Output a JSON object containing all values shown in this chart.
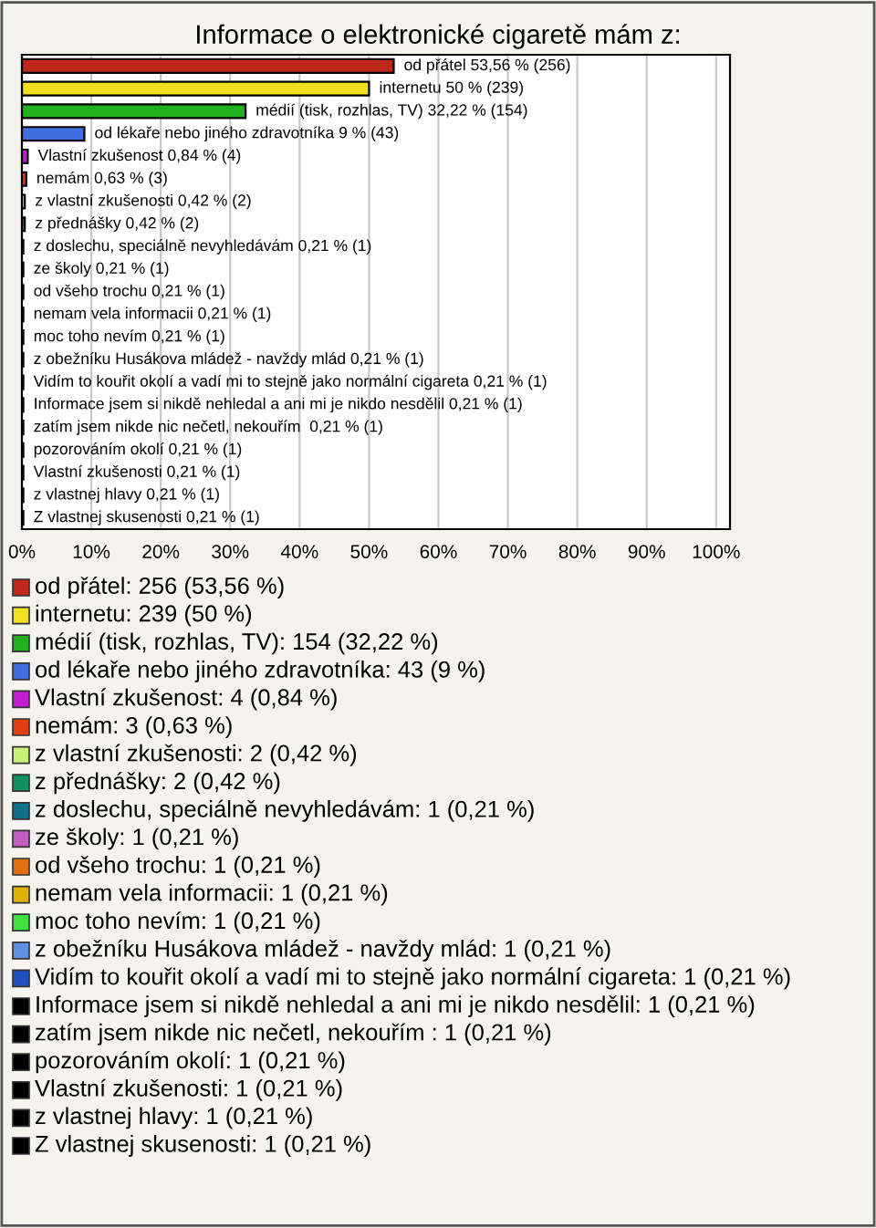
{
  "chart_data": {
    "type": "bar",
    "orientation": "horizontal",
    "title": "Informace o elektronické cigaretě mám z:",
    "categories": [
      null,
      null,
      null,
      null,
      null,
      null,
      null,
      null,
      null,
      null,
      null,
      null,
      null,
      null,
      null,
      null,
      null,
      null,
      null,
      null,
      null
    ],
    "values": [
      53.56,
      50,
      32.22,
      9,
      0.84,
      0.63,
      0.42,
      0.42,
      0.21,
      0.21,
      0.21,
      0.21,
      0.21,
      0.21,
      0.21,
      0.21,
      0.21,
      0.21,
      0.21,
      0.21,
      0.21
    ],
    "colors": [
      "#c0281c",
      "#f0e020",
      "#20b020",
      "#4070e0",
      "#c020d0",
      "#e04010",
      "#c8f078",
      "#109060",
      "#107088",
      "#c060c0",
      "#e07010",
      "#e0b000",
      "#40e040",
      "#6090e0",
      "#2050c0",
      "#000000",
      "#000000",
      "#000000",
      "#000000",
      "#000000",
      "#000000"
    ],
    "value_labels": [
      "od přátel 53,56 % (256)",
      "internetu 50 % (239)",
      "médií (tisk, rozhlas, TV) 32,22 % (154)",
      "od lékaře nebo jiného zdravotníka 9 % (43)",
      "Vlastní zkušenost 0,84 % (4)",
      "nemám 0,63 % (3)",
      "z vlastní zkušenosti 0,42 % (2)",
      "z přednášky 0,42 % (2)",
      "z doslechu, speciálně nevyhledávám 0,21 % (1)",
      "ze školy 0,21 % (1)",
      "od všeho trochu 0,21 % (1)",
      "nemam vela informacii 0,21 % (1)",
      "moc toho nevím 0,21 % (1)",
      "z obežníku Husákova mládež - navždy mlád 0,21 % (1)",
      "Vidím to kouřit okolí a vadí mi to stejně jako normální cigareta 0,21 % (1)",
      "Informace jsem si nikdě nehledal a ani mi je nikdo nesdělil 0,21 % (1)",
      "zatím jsem nikde nic nečetl, nekouřím  0,21 % (1)",
      "pozorováním okolí 0,21 % (1)",
      "Vlastní zkušenosti 0,21 % (1)",
      "z vlastnej hlavy 0,21 % (1)",
      "Z vlastnej skusenosti 0,21 % (1)"
    ],
    "annotations": [
      "od přátel: 256 (53,56 %)",
      "internetu: 239 (50 %)",
      "médií (tisk, rozhlas, TV): 154 (32,22 %)",
      "od lékaře nebo jiného zdravotníka: 43 (9 %)",
      "Vlastní zkušenost: 4 (0,84 %)",
      "nemám: 3 (0,63 %)",
      "z vlastní zkušenosti: 2 (0,42 %)",
      "z přednášky: 2 (0,42 %)",
      "z doslechu, speciálně nevyhledávám: 1 (0,21 %)",
      "ze školy: 1 (0,21 %)",
      "od všeho trochu: 1 (0,21 %)",
      "nemam vela informacii: 1 (0,21 %)",
      "moc toho nevím: 1 (0,21 %)",
      "z obežníku Husákova mládež - navždy mlád: 1 (0,21 %)",
      "Vidím to kouřit okolí a vadí mi to stejně jako normální cigareta: 1 (0,21 %)",
      "Informace jsem si nikdě nehledal a ani mi je nikdo nesdělil: 1 (0,21 %)",
      "zatím jsem nikde nic nečetl, nekouřím : 1 (0,21 %)",
      "pozorováním okolí: 1 (0,21 %)",
      "Vlastní zkušenosti: 1 (0,21 %)",
      "z vlastnej hlavy: 1 (0,21 %)",
      "Z vlastnej skusenosti: 1 (0,21 %)"
    ],
    "xlim": [
      0,
      102
    ],
    "xticks": [
      {
        "value": 0,
        "label": "0%"
      },
      {
        "value": 10,
        "label": "10%"
      },
      {
        "value": 20,
        "label": "20%"
      },
      {
        "value": 30,
        "label": "30%"
      },
      {
        "value": 40,
        "label": "40%"
      },
      {
        "value": 50,
        "label": "50%"
      },
      {
        "value": 60,
        "label": "60%"
      },
      {
        "value": 70,
        "label": "70%"
      },
      {
        "value": 80,
        "label": "80%"
      },
      {
        "value": 90,
        "label": "90%"
      },
      {
        "value": 100,
        "label": "100%"
      }
    ],
    "grid": "x"
  }
}
